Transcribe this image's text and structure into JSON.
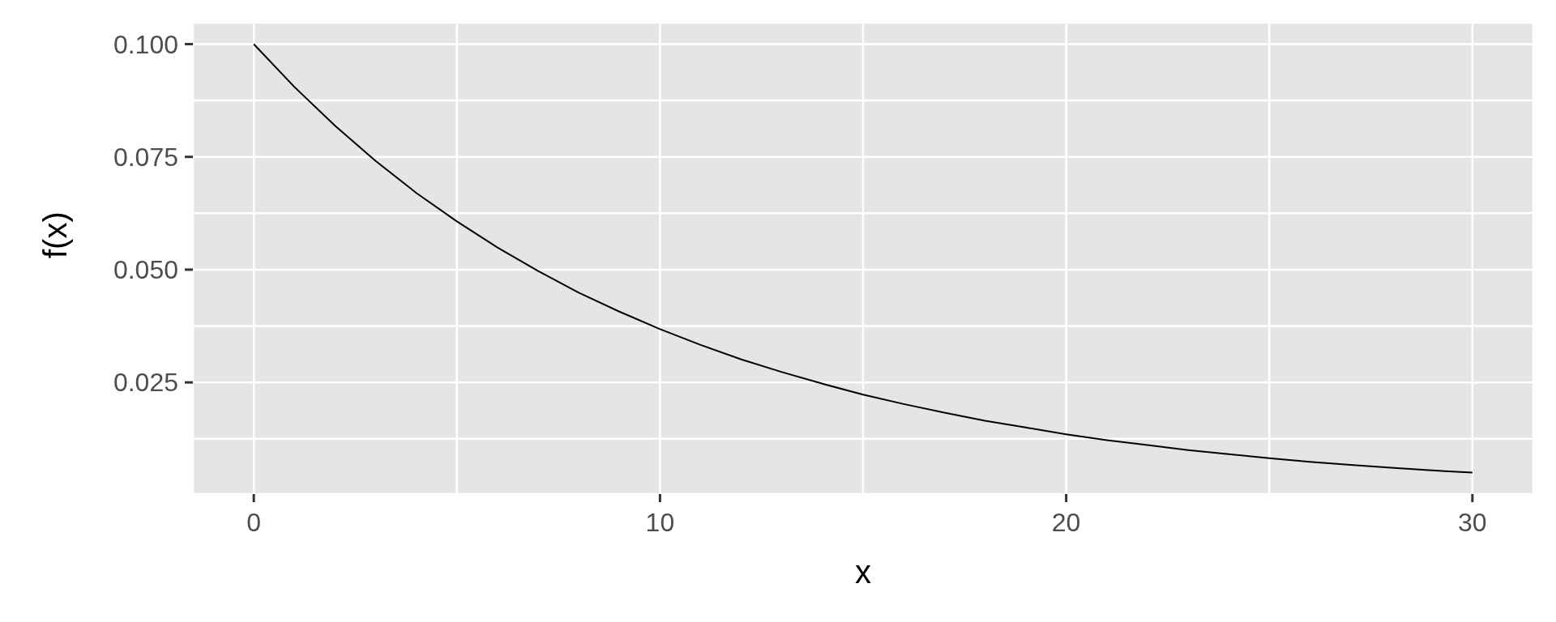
{
  "chart_data": {
    "type": "line",
    "xlabel": "x",
    "ylabel": "f(x)",
    "x": [
      0,
      1,
      2,
      3,
      4,
      5,
      6,
      7,
      8,
      9,
      10,
      11,
      12,
      13,
      14,
      15,
      16,
      17,
      18,
      19,
      20,
      21,
      22,
      23,
      24,
      25,
      26,
      27,
      28,
      29,
      30
    ],
    "series": [
      {
        "color": "#000000",
        "values": [
          0.1,
          0.0905,
          0.0819,
          0.0741,
          0.067,
          0.0607,
          0.0549,
          0.0497,
          0.0449,
          0.0407,
          0.0368,
          0.0333,
          0.0301,
          0.0273,
          0.0247,
          0.0223,
          0.0202,
          0.0183,
          0.0165,
          0.015,
          0.0135,
          0.0122,
          0.0111,
          0.01,
          0.0091,
          0.0082,
          0.0074,
          0.0067,
          0.0061,
          0.0055,
          0.005
        ]
      }
    ],
    "xlim": [
      -1.5,
      31.5
    ],
    "xticks": [
      0,
      {
        "value": 5,
        "label": null
      },
      10,
      {
        "value": 15,
        "label": null
      },
      20,
      {
        "value": 25,
        "label": null
      },
      30
    ],
    "ylim": [
      0.00025,
      0.10475
    ],
    "yticks": [
      {
        "value": 0.0125,
        "label": null
      },
      {
        "value": 0.025,
        "label": "0.025"
      },
      {
        "value": 0.0375,
        "label": null
      },
      {
        "value": 0.05,
        "label": "0.050"
      },
      {
        "value": 0.0625,
        "label": null
      },
      {
        "value": 0.075,
        "label": "0.075"
      },
      {
        "value": 0.0875,
        "label": null
      },
      {
        "value": 0.1,
        "label": "0.100"
      }
    ],
    "grid": true,
    "marker": "none",
    "line_style": "solid"
  }
}
